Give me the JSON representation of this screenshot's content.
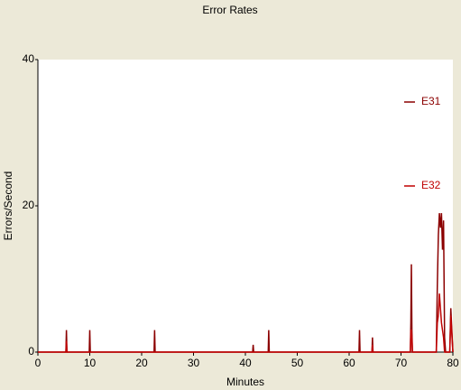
{
  "chart_data": {
    "type": "line",
    "title": "Error Rates",
    "x_label": "Minutes",
    "y_label": "Errors/Second",
    "x": [
      0,
      5.4,
      5.5,
      5.6,
      9.9,
      10,
      10.1,
      22.4,
      22.5,
      22.6,
      41.4,
      41.5,
      41.6,
      44.4,
      44.5,
      44.6,
      61.9,
      62,
      62.1,
      64.4,
      64.5,
      64.6,
      71.8,
      71.9,
      72,
      72.1,
      72.2,
      76.8,
      77,
      77.2,
      77.4,
      77.6,
      77.8,
      78,
      78.2,
      78.4,
      78.6,
      79.4,
      79.6,
      80
    ],
    "series": [
      {
        "name": "E31",
        "color": "#8b0000",
        "values": [
          0,
          0,
          3,
          0,
          0,
          3,
          0,
          0,
          3,
          0,
          0,
          1,
          0,
          0,
          3,
          0,
          0,
          3,
          0,
          0,
          2,
          0,
          0,
          4,
          12,
          3,
          0,
          0,
          9,
          16,
          19,
          17,
          19,
          14,
          18,
          2,
          0,
          0,
          6,
          0
        ]
      },
      {
        "name": "E32",
        "color": "#c00000",
        "values": [
          0,
          0,
          1.5,
          0,
          0,
          0,
          0,
          0,
          0,
          0,
          0,
          0,
          0,
          0,
          0,
          0,
          0,
          0,
          0,
          0,
          1,
          0,
          0,
          3,
          3,
          2,
          0,
          0,
          4,
          5,
          8,
          6,
          4,
          3,
          2,
          0,
          0,
          0,
          5,
          0
        ]
      }
    ],
    "xlim": [
      0,
      80
    ],
    "xticks": [
      0,
      10,
      20,
      30,
      40,
      50,
      60,
      70,
      80
    ],
    "ylim": [
      0,
      40
    ],
    "yticks": [
      0,
      20,
      40
    ],
    "legend": "right"
  }
}
